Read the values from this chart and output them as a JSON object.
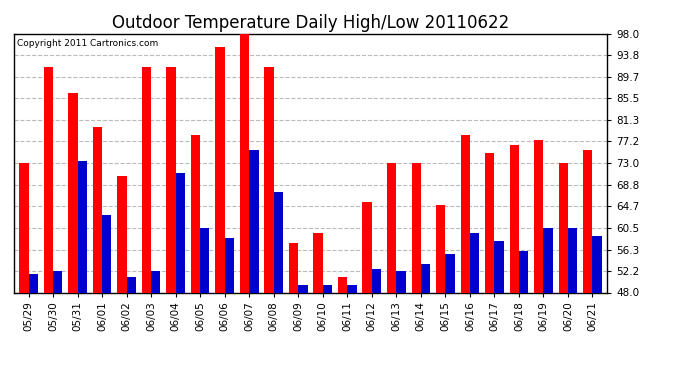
{
  "title": "Outdoor Temperature Daily High/Low 20110622",
  "copyright": "Copyright 2011 Cartronics.com",
  "categories": [
    "05/29",
    "05/30",
    "05/31",
    "06/01",
    "06/02",
    "06/03",
    "06/04",
    "06/05",
    "06/06",
    "06/07",
    "06/08",
    "06/09",
    "06/10",
    "06/11",
    "06/12",
    "06/13",
    "06/14",
    "06/15",
    "06/16",
    "06/17",
    "06/18",
    "06/19",
    "06/20",
    "06/21"
  ],
  "highs": [
    73.0,
    91.5,
    86.5,
    80.0,
    70.5,
    91.5,
    91.5,
    78.5,
    95.5,
    98.0,
    91.5,
    57.5,
    59.5,
    51.0,
    65.5,
    73.0,
    73.0,
    65.0,
    78.5,
    75.0,
    76.5,
    77.5,
    73.0,
    75.5
  ],
  "lows": [
    51.5,
    52.2,
    73.5,
    63.0,
    51.0,
    52.2,
    71.0,
    60.5,
    58.5,
    75.5,
    67.5,
    49.5,
    49.5,
    49.5,
    52.5,
    52.2,
    53.5,
    55.5,
    59.5,
    58.0,
    56.0,
    60.5,
    60.5,
    59.0
  ],
  "high_color": "#ff0000",
  "low_color": "#0000cc",
  "bg_color": "#ffffff",
  "grid_color": "#bbbbbb",
  "ymin": 48.0,
  "ymax": 98.0,
  "yticks": [
    48.0,
    52.2,
    56.3,
    60.5,
    64.7,
    68.8,
    73.0,
    77.2,
    81.3,
    85.5,
    89.7,
    93.8,
    98.0
  ],
  "title_fontsize": 12,
  "tick_fontsize": 7.5,
  "bar_width": 0.38
}
